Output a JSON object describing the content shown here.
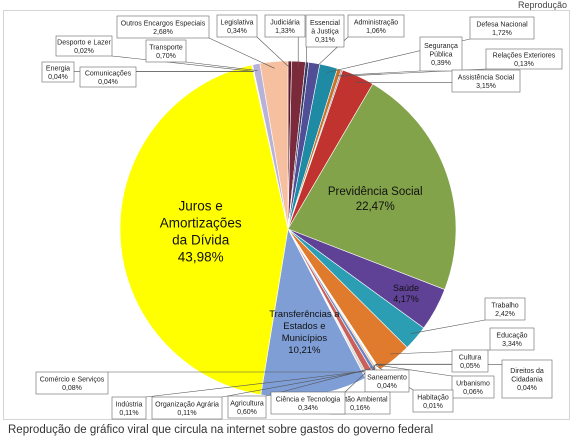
{
  "credit": "Reprodução",
  "caption": "Reprodução de gráfico viral que circula na internet sobre gastos do governo federal",
  "chart_data": {
    "type": "pie",
    "title": "",
    "slices": [
      {
        "label": "Legislativa",
        "value": 0.34,
        "display": "0,34%",
        "color": "#5a1b2a"
      },
      {
        "label": "Judiciária",
        "value": 1.33,
        "display": "1,33%",
        "color": "#7b2a3b"
      },
      {
        "label": "Essencial à Justiça",
        "value": 0.31,
        "display": "0,31%",
        "color": "#3a3a66"
      },
      {
        "label": "Administração",
        "value": 1.06,
        "display": "1,06%",
        "color": "#4f4e96"
      },
      {
        "label": "Defesa Nacional",
        "value": 1.72,
        "display": "1,72%",
        "color": "#1f8aa3"
      },
      {
        "label": "Segurança Pública",
        "value": 0.39,
        "display": "0,39%",
        "color": "#c8752a"
      },
      {
        "label": "Relações Exteriores",
        "value": 0.13,
        "display": "0,13%",
        "color": "#6e7fae"
      },
      {
        "label": "Assistência Social",
        "value": 3.15,
        "display": "3,15%",
        "color": "#c0332e"
      },
      {
        "label": "Previdência Social",
        "value": 22.47,
        "display": "22,47%",
        "color": "#82a34a"
      },
      {
        "label": "Saúde",
        "value": 4.17,
        "display": "4,17%",
        "color": "#5f4196"
      },
      {
        "label": "Trabalho",
        "value": 2.42,
        "display": "2,42%",
        "color": "#2c9eb4"
      },
      {
        "label": "Educação",
        "value": 3.34,
        "display": "3,34%",
        "color": "#e07b2d"
      },
      {
        "label": "Cultura",
        "value": 0.05,
        "display": "0,05%",
        "color": "#9bb0d6"
      },
      {
        "label": "Direitos da Cidadania",
        "value": 0.04,
        "display": "0,04%",
        "color": "#d69a9a"
      },
      {
        "label": "Urbanismo",
        "value": 0.06,
        "display": "0,06%",
        "color": "#b8cf8c"
      },
      {
        "label": "Habitação",
        "value": 0.01,
        "display": "0,01%",
        "color": "#a79ac6"
      },
      {
        "label": "Saneamento",
        "value": 0.04,
        "display": "0,04%",
        "color": "#8fcbd9"
      },
      {
        "label": "Gestão Ambiental",
        "value": 0.16,
        "display": "0,16%",
        "color": "#f0b47a"
      },
      {
        "label": "Ciência e Tecnologia",
        "value": 0.34,
        "display": "0,34%",
        "color": "#6b86c0"
      },
      {
        "label": "Agricultura",
        "value": 0.6,
        "display": "0,60%",
        "color": "#c9605c"
      },
      {
        "label": "Organização Agrária",
        "value": 0.11,
        "display": "0,11%",
        "color": "#a5c36a"
      },
      {
        "label": "Indústria",
        "value": 0.11,
        "display": "0,11%",
        "color": "#8a6bb8"
      },
      {
        "label": "Comércio e Serviços",
        "value": 0.08,
        "display": "0,08%",
        "color": "#5cc0d0"
      },
      {
        "label": "Transferências a Estados e Municípios",
        "value": 10.21,
        "display": "10,21%",
        "color": "#7f9ed6"
      },
      {
        "label": "Juros e Amortizações da Dívida",
        "value": 43.98,
        "display": "43,98%",
        "color": "#ffff00"
      },
      {
        "label": "Comunicações",
        "value": 0.04,
        "display": "0,04%",
        "color": "#8caad9"
      },
      {
        "label": "Energia",
        "value": 0.04,
        "display": "0,04%",
        "color": "#d8a3a3"
      },
      {
        "label": "Desporto e Lazer",
        "value": 0.02,
        "display": "0,02%",
        "color": "#c2d69b"
      },
      {
        "label": "Transporte",
        "value": 0.7,
        "display": "0,70%",
        "color": "#b8b2d8"
      },
      {
        "label": "Outros Encargos Especiais",
        "value": 2.68,
        "display": "2,68%",
        "color": "#f5bfa0"
      }
    ]
  }
}
